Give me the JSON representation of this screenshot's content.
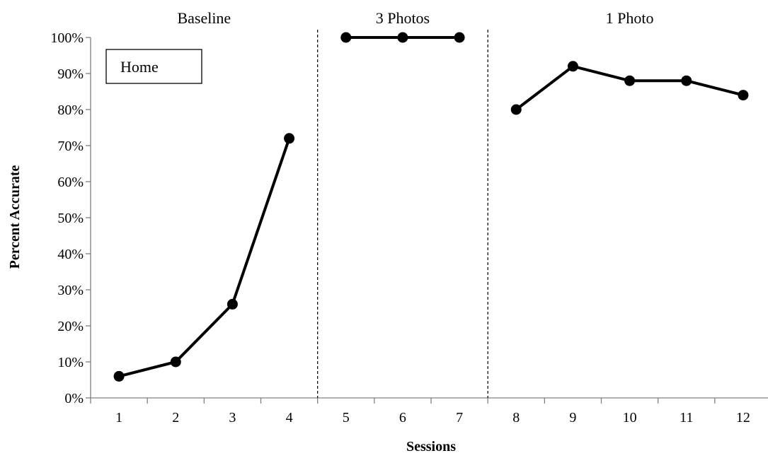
{
  "chart_data": {
    "type": "line",
    "xlabel": "Sessions",
    "ylabel": "Percent Accurate",
    "ylim": [
      0,
      100
    ],
    "y_ticks": [
      "0%",
      "10%",
      "20%",
      "30%",
      "40%",
      "50%",
      "60%",
      "70%",
      "80%",
      "90%",
      "100%"
    ],
    "x_ticks": [
      "1",
      "2",
      "3",
      "4",
      "5",
      "6",
      "7",
      "8",
      "9",
      "10",
      "11",
      "12"
    ],
    "legend_box_text": "Home",
    "phase_change_lines_after_session": [
      4.5,
      7.5
    ],
    "phases": [
      {
        "label": "Baseline",
        "x": [
          1,
          2,
          3,
          4
        ],
        "y": [
          6,
          10,
          26,
          72
        ]
      },
      {
        "label": "3 Photos",
        "x": [
          5,
          6,
          7
        ],
        "y": [
          100,
          100,
          100
        ]
      },
      {
        "label": "1 Photo",
        "x": [
          8,
          9,
          10,
          11,
          12
        ],
        "y": [
          80,
          92,
          88,
          88,
          84
        ]
      }
    ],
    "grid": false,
    "colors": {
      "line": "#000000",
      "marker": "#000000",
      "axis": "#808080"
    }
  }
}
